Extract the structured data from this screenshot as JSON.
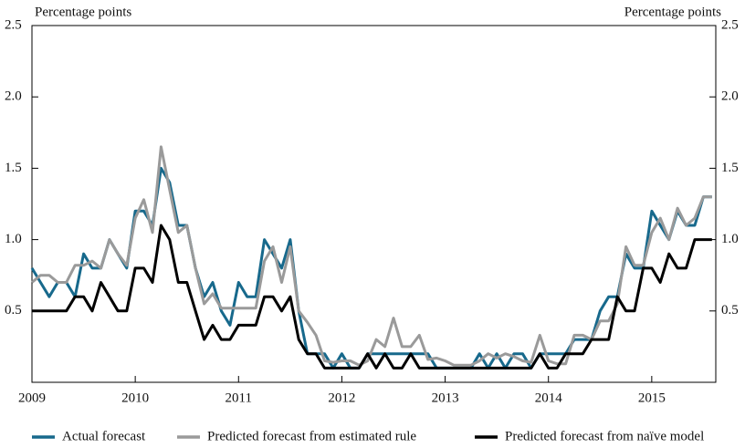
{
  "chart_data": {
    "type": "line",
    "y_label": "Percentage points",
    "y2_label": "Percentage points",
    "x": [
      2009,
      2009.083,
      2009.167,
      2009.25,
      2009.333,
      2009.417,
      2009.5,
      2009.583,
      2009.667,
      2009.75,
      2009.833,
      2009.917,
      2010,
      2010.083,
      2010.167,
      2010.25,
      2010.333,
      2010.417,
      2010.5,
      2010.583,
      2010.667,
      2010.75,
      2010.833,
      2010.917,
      2011,
      2011.083,
      2011.167,
      2011.25,
      2011.333,
      2011.417,
      2011.5,
      2011.583,
      2011.667,
      2011.75,
      2011.833,
      2011.917,
      2012,
      2012.083,
      2012.167,
      2012.25,
      2012.333,
      2012.417,
      2012.5,
      2012.583,
      2012.667,
      2012.75,
      2012.833,
      2012.917,
      2013,
      2013.083,
      2013.167,
      2013.25,
      2013.333,
      2013.417,
      2013.5,
      2013.583,
      2013.667,
      2013.75,
      2013.833,
      2013.917,
      2014,
      2014.083,
      2014.167,
      2014.25,
      2014.333,
      2014.417,
      2014.5,
      2014.583,
      2014.667,
      2014.75,
      2014.833,
      2014.917,
      2015,
      2015.083,
      2015.167,
      2015.25,
      2015.333,
      2015.417,
      2015.5,
      2015.583
    ],
    "series": [
      {
        "name": "Actual forecast",
        "color": "#17698c",
        "values": [
          0.8,
          0.7,
          0.6,
          0.7,
          0.7,
          0.6,
          0.9,
          0.8,
          0.8,
          1.0,
          0.9,
          0.8,
          1.2,
          1.2,
          1.1,
          1.5,
          1.4,
          1.1,
          1.1,
          0.8,
          0.6,
          0.7,
          0.5,
          0.4,
          0.7,
          0.6,
          0.6,
          1.0,
          0.9,
          0.8,
          1.0,
          0.5,
          0.2,
          0.2,
          0.2,
          0.1,
          0.2,
          0.1,
          0.1,
          0.2,
          0.2,
          0.2,
          0.2,
          0.2,
          0.2,
          0.2,
          0.2,
          0.1,
          0.1,
          0.1,
          0.1,
          0.1,
          0.2,
          0.1,
          0.2,
          0.1,
          0.2,
          0.2,
          0.1,
          0.2,
          0.2,
          0.2,
          0.2,
          0.3,
          0.3,
          0.3,
          0.5,
          0.6,
          0.6,
          0.9,
          0.8,
          0.8,
          1.2,
          1.1,
          1.0,
          1.2,
          1.1,
          1.1,
          1.3,
          1.3
        ]
      },
      {
        "name": "Predicted forecast from estimated rule",
        "color": "#9a9a9a",
        "values": [
          0.7,
          0.75,
          0.75,
          0.7,
          0.7,
          0.82,
          0.82,
          0.85,
          0.8,
          1.0,
          0.9,
          0.82,
          1.15,
          1.28,
          1.05,
          1.65,
          1.35,
          1.05,
          1.1,
          0.8,
          0.55,
          0.62,
          0.52,
          0.52,
          0.52,
          0.52,
          0.52,
          0.85,
          0.95,
          0.7,
          0.95,
          0.5,
          0.42,
          0.33,
          0.15,
          0.14,
          0.15,
          0.15,
          0.12,
          0.15,
          0.3,
          0.25,
          0.45,
          0.25,
          0.25,
          0.33,
          0.16,
          0.17,
          0.15,
          0.12,
          0.12,
          0.12,
          0.15,
          0.2,
          0.17,
          0.2,
          0.18,
          0.15,
          0.14,
          0.33,
          0.15,
          0.13,
          0.13,
          0.33,
          0.33,
          0.3,
          0.43,
          0.43,
          0.55,
          0.95,
          0.82,
          0.82,
          1.05,
          1.15,
          1.0,
          1.22,
          1.1,
          1.15,
          1.3,
          1.3
        ]
      },
      {
        "name": "Predicted forecast from naïve model",
        "color": "#000000",
        "values": [
          0.5,
          0.5,
          0.5,
          0.5,
          0.5,
          0.6,
          0.6,
          0.5,
          0.7,
          0.6,
          0.5,
          0.5,
          0.8,
          0.8,
          0.7,
          1.1,
          1.0,
          0.7,
          0.7,
          0.5,
          0.3,
          0.4,
          0.3,
          0.3,
          0.4,
          0.4,
          0.4,
          0.6,
          0.6,
          0.5,
          0.6,
          0.3,
          0.2,
          0.2,
          0.1,
          0.1,
          0.1,
          0.1,
          0.1,
          0.2,
          0.1,
          0.2,
          0.1,
          0.1,
          0.2,
          0.1,
          0.1,
          0.1,
          0.1,
          0.1,
          0.1,
          0.1,
          0.1,
          0.1,
          0.1,
          0.1,
          0.1,
          0.1,
          0.1,
          0.2,
          0.1,
          0.1,
          0.2,
          0.2,
          0.2,
          0.3,
          0.3,
          0.3,
          0.6,
          0.5,
          0.5,
          0.8,
          0.8,
          0.7,
          0.9,
          0.8,
          0.8,
          1.0,
          1.0,
          1.0
        ]
      }
    ],
    "xlim": [
      2009,
      2015.62
    ],
    "xticks": [
      2009,
      2010,
      2011,
      2012,
      2013,
      2014,
      2015
    ],
    "ylim": [
      0,
      2.5
    ],
    "yticks": [
      {
        "value": 0.5,
        "label": "0.5"
      },
      {
        "value": 1,
        "label": "1.0"
      },
      {
        "value": 1.5,
        "label": "1.5"
      },
      {
        "value": 2,
        "label": "2.0"
      },
      {
        "value": 2.5,
        "label": "2.5"
      }
    ],
    "legend": "bottom"
  }
}
